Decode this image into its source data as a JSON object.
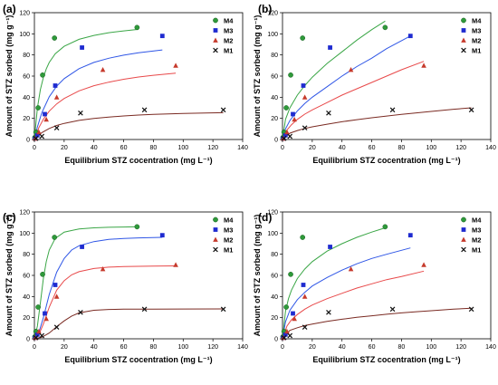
{
  "chart_data": [
    {
      "panel_label": "(a)",
      "type": "scatter",
      "title": "",
      "xlabel": "Equilibrium STZ cocentration (mg L⁻¹)",
      "ylabel": "Amount of STZ sorbed (mg g⁻¹)",
      "xlim": [
        0,
        140
      ],
      "ylim": [
        0,
        120
      ],
      "xticks": [
        0,
        20,
        40,
        60,
        80,
        100,
        120,
        140
      ],
      "yticks": [
        0,
        20,
        40,
        60,
        80,
        100,
        120
      ],
      "legend_position": "top-right",
      "series": [
        {
          "name": "M4",
          "marker": "circle",
          "color": "#2e9a3a",
          "x": [
            0.3,
            1.0,
            2.5,
            5.5,
            13.5,
            69
          ],
          "y": [
            2,
            7,
            30,
            61,
            96,
            106
          ],
          "fit_x": [
            0,
            2,
            4,
            6,
            8,
            10,
            14,
            20,
            30,
            40,
            50,
            60,
            70
          ],
          "fit_y": [
            0,
            29.7,
            47.2,
            58.7,
            66.8,
            72.9,
            81.1,
            88.2,
            94.8,
            98.5,
            101.1,
            102.8,
            104.2
          ]
        },
        {
          "name": "M3",
          "marker": "square",
          "color": "#1f2bd0",
          "x": [
            0.5,
            2,
            7,
            14,
            32,
            86
          ],
          "y": [
            1,
            4,
            24,
            51,
            87,
            98
          ],
          "fit_x": [
            0,
            2,
            5,
            10,
            15,
            20,
            30,
            40,
            50,
            60,
            70,
            86
          ],
          "fit_y": [
            0,
            11.9,
            25.4,
            40.5,
            50.5,
            57.6,
            67.0,
            72.9,
            76.9,
            79.8,
            82.1,
            84.8
          ]
        },
        {
          "name": "M2",
          "marker": "triangle",
          "color": "#c63a2c",
          "x": [
            0.5,
            3,
            8,
            15,
            46,
            95
          ],
          "y": [
            1,
            7,
            19,
            40,
            66,
            70
          ],
          "fit_x": [
            0,
            3,
            6,
            10,
            15,
            20,
            30,
            40,
            50,
            60,
            70,
            80,
            95
          ],
          "fit_y": [
            0,
            11.2,
            19.2,
            26.8,
            33.7,
            38.8,
            46.0,
            50.9,
            54.3,
            57.0,
            59.1,
            60.8,
            62.7
          ]
        },
        {
          "name": "M1",
          "marker": "x",
          "color": "#111111",
          "x": [
            1,
            5,
            15,
            31,
            74,
            127
          ],
          "y": [
            1,
            3,
            11,
            25,
            28,
            28
          ],
          "fit_x": [
            0,
            5,
            10,
            15,
            20,
            30,
            40,
            50,
            60,
            70,
            80,
            90,
            100,
            115,
            127
          ],
          "fit_y": [
            0,
            6.5,
            10.5,
            13.3,
            15.3,
            18.1,
            20.0,
            21.3,
            22.3,
            23.1,
            23.7,
            24.2,
            24.6,
            25.1,
            25.4
          ]
        }
      ]
    },
    {
      "panel_label": "(b)",
      "type": "scatter",
      "title": "",
      "xlabel": "Equilibrium STZ cocentration (mg L⁻¹)",
      "ylabel": "Amount of STZ sorbed (mg g⁻¹)",
      "xlim": [
        0,
        140
      ],
      "ylim": [
        0,
        120
      ],
      "xticks": [
        0,
        20,
        40,
        60,
        80,
        100,
        120,
        140
      ],
      "yticks": [
        0,
        20,
        40,
        60,
        80,
        100,
        120
      ],
      "legend_position": "top-right",
      "series": [
        {
          "name": "M4",
          "marker": "circle",
          "color": "#2e9a3a",
          "x": [
            0.3,
            1.0,
            2.5,
            5.5,
            13.5,
            69
          ],
          "y": [
            2,
            7,
            30,
            61,
            96,
            106
          ],
          "fit_x": [
            0,
            2,
            5,
            10,
            15,
            20,
            30,
            40,
            50,
            60,
            69
          ],
          "fit_y": [
            0,
            19.0,
            30.0,
            42.0,
            51.0,
            59.0,
            72.0,
            83.0,
            94.0,
            104.0,
            112.0
          ]
        },
        {
          "name": "M3",
          "marker": "square",
          "color": "#1f2bd0",
          "x": [
            0.5,
            2,
            7,
            14,
            32,
            86
          ],
          "y": [
            1,
            4,
            24,
            51,
            87,
            98
          ],
          "fit_x": [
            0,
            2,
            5,
            10,
            15,
            20,
            30,
            40,
            50,
            60,
            70,
            86
          ],
          "fit_y": [
            0,
            10.0,
            18.0,
            27.0,
            34.0,
            40.0,
            50.0,
            60.0,
            69.0,
            77.0,
            86.0,
            98.0
          ]
        },
        {
          "name": "M2",
          "marker": "triangle",
          "color": "#c63a2c",
          "x": [
            0.5,
            3,
            8,
            15,
            46,
            95
          ],
          "y": [
            1,
            7,
            19,
            40,
            66,
            70
          ],
          "fit_x": [
            0,
            3,
            6,
            10,
            15,
            20,
            30,
            40,
            50,
            60,
            70,
            80,
            95
          ],
          "fit_y": [
            0,
            9.0,
            14.0,
            19.0,
            24.0,
            28.0,
            35.0,
            42.0,
            48.0,
            54.0,
            60.0,
            66.0,
            74.0
          ]
        },
        {
          "name": "M1",
          "marker": "x",
          "color": "#111111",
          "x": [
            1,
            5,
            15,
            31,
            74,
            127
          ],
          "y": [
            1,
            3,
            11,
            25,
            28,
            28
          ],
          "fit_x": [
            0,
            5,
            10,
            15,
            20,
            30,
            40,
            50,
            60,
            70,
            80,
            90,
            100,
            115,
            127
          ],
          "fit_y": [
            0,
            6.0,
            8.5,
            10.5,
            12.0,
            14.5,
            16.8,
            18.8,
            20.6,
            22.2,
            23.8,
            25.2,
            26.6,
            28.6,
            30.0
          ]
        }
      ]
    },
    {
      "panel_label": "(c)",
      "type": "scatter",
      "title": "",
      "xlabel": "Equilibrium STZ cocentration (mg L⁻¹)",
      "ylabel": "Amount of STZ sorbed (mg g⁻¹)",
      "xlim": [
        0,
        140
      ],
      "ylim": [
        0,
        120
      ],
      "xticks": [
        0,
        20,
        40,
        60,
        80,
        100,
        120,
        140
      ],
      "yticks": [
        0,
        20,
        40,
        60,
        80,
        100,
        120
      ],
      "legend_position": "top-right",
      "series": [
        {
          "name": "M4",
          "marker": "circle",
          "color": "#2e9a3a",
          "x": [
            0.3,
            1.0,
            2.5,
            5.5,
            13.5,
            69
          ],
          "y": [
            2,
            7,
            30,
            61,
            96,
            106
          ],
          "fit_x": [
            0,
            2,
            4,
            6,
            8,
            10,
            14,
            20,
            30,
            40,
            50,
            60,
            70
          ],
          "fit_y": [
            0,
            12.0,
            34.0,
            57.0,
            73.0,
            84.0,
            95.0,
            101.0,
            104.0,
            105.0,
            105.5,
            105.8,
            106.0
          ]
        },
        {
          "name": "M3",
          "marker": "square",
          "color": "#1f2bd0",
          "x": [
            0.5,
            2,
            7,
            14,
            32,
            86
          ],
          "y": [
            1,
            4,
            24,
            51,
            87,
            98
          ],
          "fit_x": [
            0,
            3,
            6,
            10,
            15,
            20,
            25,
            30,
            40,
            50,
            60,
            70,
            86
          ],
          "fit_y": [
            0,
            6.0,
            20.0,
            42.0,
            63.0,
            76.0,
            84.0,
            88.0,
            92.0,
            94.0,
            95.0,
            95.5,
            96.0
          ]
        },
        {
          "name": "M2",
          "marker": "triangle",
          "color": "#c63a2c",
          "x": [
            0.5,
            3,
            8,
            15,
            46,
            95
          ],
          "y": [
            1,
            7,
            19,
            40,
            66,
            70
          ],
          "fit_x": [
            0,
            3,
            6,
            10,
            15,
            20,
            25,
            30,
            40,
            50,
            60,
            70,
            80,
            95
          ],
          "fit_y": [
            0,
            4.0,
            14.0,
            30.0,
            46.0,
            55.0,
            60.5,
            63.5,
            66.5,
            67.8,
            68.3,
            68.6,
            68.8,
            69.0
          ]
        },
        {
          "name": "M1",
          "marker": "x",
          "color": "#111111",
          "x": [
            1,
            5,
            15,
            31,
            74,
            127
          ],
          "y": [
            1,
            3,
            11,
            25,
            28,
            28
          ],
          "fit_x": [
            0,
            5,
            10,
            15,
            20,
            25,
            30,
            40,
            50,
            60,
            80,
            100,
            127
          ],
          "fit_y": [
            0,
            1.5,
            5.5,
            11.5,
            17.0,
            21.5,
            24.5,
            27.0,
            27.8,
            28.0,
            28.1,
            28.2,
            28.3
          ]
        }
      ]
    },
    {
      "panel_label": "(d)",
      "type": "scatter",
      "title": "",
      "xlabel": "Equilibrium STZ cocentration (mg L⁻¹)",
      "ylabel": "Amount of STZ sorbed (mg g⁻¹)",
      "xlim": [
        0,
        140
      ],
      "ylim": [
        0,
        120
      ],
      "xticks": [
        0,
        20,
        40,
        60,
        80,
        100,
        120,
        140
      ],
      "yticks": [
        0,
        20,
        40,
        60,
        80,
        100,
        120
      ],
      "legend_position": "top-right",
      "series": [
        {
          "name": "M4",
          "marker": "circle",
          "color": "#2e9a3a",
          "x": [
            0.3,
            1.0,
            2.5,
            5.5,
            13.5,
            69
          ],
          "y": [
            2,
            7,
            30,
            61,
            96,
            106
          ],
          "fit_x": [
            0,
            2,
            4,
            6,
            10,
            15,
            20,
            30,
            40,
            50,
            60,
            69
          ],
          "fit_y": [
            0,
            26.0,
            38.0,
            46.0,
            57.0,
            66.0,
            73.0,
            83.0,
            90.0,
            96.0,
            101.0,
            105.0
          ]
        },
        {
          "name": "M3",
          "marker": "square",
          "color": "#1f2bd0",
          "x": [
            0.5,
            2,
            7,
            14,
            32,
            86
          ],
          "y": [
            1,
            4,
            24,
            51,
            87,
            98
          ],
          "fit_x": [
            0,
            2,
            5,
            10,
            15,
            20,
            30,
            40,
            50,
            60,
            70,
            86
          ],
          "fit_y": [
            0,
            16.0,
            27.0,
            37.0,
            44.0,
            50.0,
            58.0,
            65.0,
            71.0,
            76.0,
            80.0,
            86.0
          ]
        },
        {
          "name": "M2",
          "marker": "triangle",
          "color": "#c63a2c",
          "x": [
            0.5,
            3,
            8,
            15,
            46,
            95
          ],
          "y": [
            1,
            7,
            19,
            40,
            66,
            70
          ],
          "fit_x": [
            0,
            3,
            6,
            10,
            15,
            20,
            30,
            40,
            50,
            60,
            70,
            80,
            95
          ],
          "fit_y": [
            0,
            12.0,
            18.0,
            23.0,
            28.0,
            32.0,
            38.0,
            43.0,
            48.0,
            52.0,
            56.0,
            59.0,
            64.0
          ]
        },
        {
          "name": "M1",
          "marker": "x",
          "color": "#111111",
          "x": [
            1,
            5,
            15,
            31,
            74,
            127
          ],
          "y": [
            1,
            3,
            11,
            25,
            28,
            28
          ],
          "fit_x": [
            0,
            5,
            10,
            15,
            20,
            30,
            40,
            50,
            60,
            70,
            80,
            90,
            100,
            115,
            127
          ],
          "fit_y": [
            0,
            8.0,
            10.5,
            12.5,
            14.0,
            16.5,
            18.5,
            20.3,
            21.8,
            23.2,
            24.5,
            25.6,
            26.6,
            28.0,
            29.0
          ]
        }
      ]
    }
  ]
}
